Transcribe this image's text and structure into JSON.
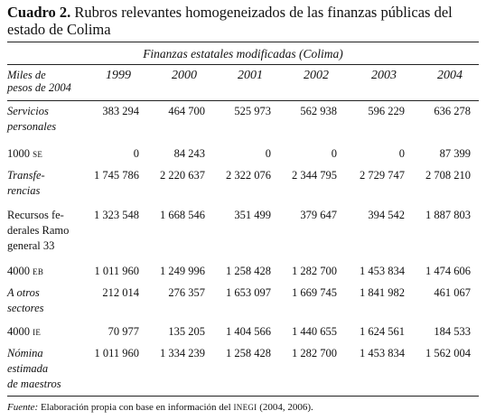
{
  "title": {
    "number": "Cuadro 2.",
    "text": "Rubros relevantes homogeneizados de las finanzas públicas del estado de Colima"
  },
  "table": {
    "spanner": "Finanzas estatales modificadas (Colima)",
    "stub_header": "Miles de\npesos de 2004",
    "columns": [
      "1999",
      "2000",
      "2001",
      "2002",
      "2003",
      "2004"
    ],
    "rows": [
      {
        "label": "Servicios\npersonales",
        "italic": true,
        "values": [
          "383 294",
          "464 700",
          "525 973",
          "562 938",
          "596 229",
          "636 278"
        ]
      },
      {
        "label": "1000",
        "tag": "SE",
        "values": [
          "0",
          "84 243",
          "0",
          "0",
          "0",
          "87 399"
        ]
      },
      {
        "label": "Transfe-\nrencias",
        "italic": true,
        "values": [
          "1 745 786",
          "2 220 637",
          "2 322 076",
          "2 344 795",
          "2 729 747",
          "2 708 210"
        ]
      },
      {
        "label": "Recursos fe-\nderales Ramo\ngeneral 33",
        "values": [
          "1 323 548",
          "1 668 546",
          "351 499",
          "379 647",
          "394 542",
          "1 887 803"
        ]
      },
      {
        "label": "4000",
        "tag": "EB",
        "values": [
          "1 011 960",
          "1 249 996",
          "1 258 428",
          "1 282 700",
          "1 453 834",
          "1 474 606"
        ]
      },
      {
        "label": "A otros\nsectores",
        "italic": true,
        "values": [
          "212 014",
          "276 357",
          "1 653 097",
          "1 669 745",
          "1 841 982",
          "461 067"
        ]
      },
      {
        "label": "4000",
        "tag": "IE",
        "values": [
          "70 977",
          "135 205",
          "1 404 566",
          "1 440 655",
          "1 624 561",
          "184 533"
        ]
      },
      {
        "label": "Nómina\nestimada\nde maestros",
        "italic": true,
        "values": [
          "1 011 960",
          "1 334 239",
          "1 258 428",
          "1 282 700",
          "1 453 834",
          "1 562 004"
        ]
      }
    ]
  },
  "source": {
    "label": "Fuente:",
    "text": "Elaboración propia con base en información del",
    "org": "INEGI",
    "years": "(2004, 2006)."
  }
}
